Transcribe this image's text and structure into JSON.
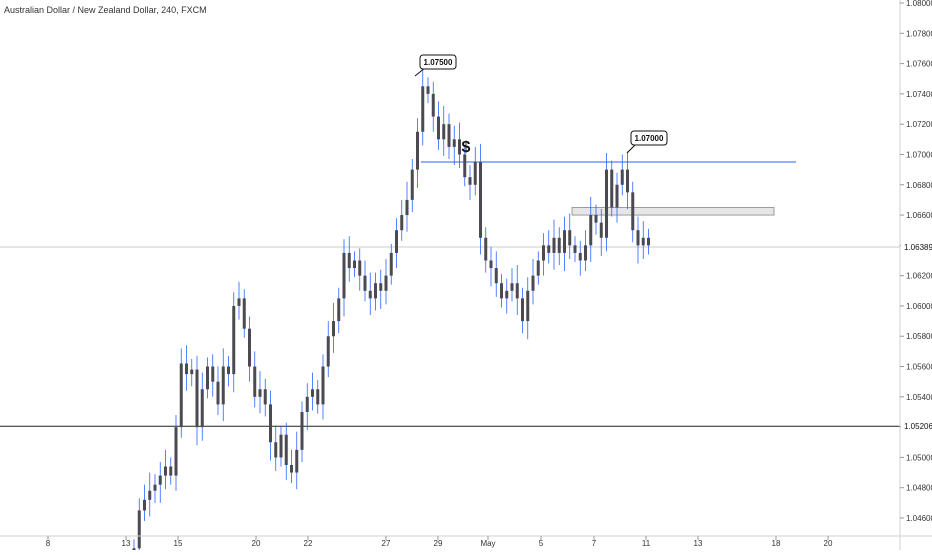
{
  "header": {
    "title": "Australian Dollar / New Zealand Dollar, 240, FXCM"
  },
  "colors": {
    "candle": "#4a4a50",
    "wick_high": "#2962ff",
    "trendline": "#2962ff",
    "axis_text": "#333333",
    "last_price_line": "#cccccc",
    "zone_fill": "#e6e6e6",
    "zone_stroke": "#888888"
  },
  "annotations": {
    "high_callout": "1.07500",
    "level_callout": "1.07000",
    "dollar_marker": "$"
  },
  "price_labels": {
    "last": "1.06389",
    "horizontal": "1.05206"
  },
  "chart_data": {
    "type": "candlestick",
    "ylim": [
      1.045,
      1.08
    ],
    "y_ticks": [
      "1.08000",
      "1.07800",
      "1.07600",
      "1.07400",
      "1.07200",
      "1.07000",
      "1.06800",
      "1.06600",
      "1.06400",
      "1.06200",
      "1.06000",
      "1.05800",
      "1.05600",
      "1.05400",
      "1.05200",
      "1.05000",
      "1.04800",
      "1.04600"
    ],
    "x_ticks": [
      "8",
      "13",
      "15",
      "20",
      "22",
      "27",
      "29",
      "May",
      "5",
      "7",
      "11",
      "13",
      "18",
      "20"
    ],
    "levels": {
      "resistance": 1.0695,
      "horizontal": 1.05206,
      "last_price": 1.06389
    },
    "demand_zone": {
      "top": 1.0665,
      "bottom": 1.066
    },
    "closes": [
      1.044,
      1.0465,
      1.0472,
      1.0478,
      1.0482,
      1.0488,
      1.0494,
      1.0488,
      1.052,
      1.0562,
      1.0555,
      1.0558,
      1.052,
      1.0545,
      1.056,
      1.055,
      1.0535,
      1.056,
      1.0555,
      1.06,
      1.0605,
      1.0585,
      1.056,
      1.054,
      1.0545,
      1.0535,
      1.051,
      1.05,
      1.0515,
      1.0495,
      1.049,
      1.0505,
      1.053,
      1.054,
      1.0545,
      1.0535,
      1.056,
      1.058,
      1.059,
      1.0605,
      1.0635,
      1.0625,
      1.063,
      1.062,
      1.061,
      1.0605,
      1.0615,
      1.061,
      1.062,
      1.0635,
      1.065,
      1.066,
      1.067,
      1.069,
      1.0715,
      1.0745,
      1.074,
      1.0725,
      1.071,
      1.072,
      1.0705,
      1.071,
      1.07,
      1.0685,
      1.068,
      1.0695,
      1.0645,
      1.063,
      1.0625,
      1.0615,
      1.0605,
      1.061,
      1.0615,
      1.0605,
      1.059,
      1.061,
      1.062,
      1.063,
      1.064,
      1.0635,
      1.0645,
      1.0635,
      1.065,
      1.064,
      1.0635,
      1.063,
      1.064,
      1.066,
      1.0655,
      1.0645,
      1.069,
      1.0665,
      1.068,
      1.069,
      1.0675,
      1.065,
      1.064,
      1.0645,
      1.064
    ]
  }
}
